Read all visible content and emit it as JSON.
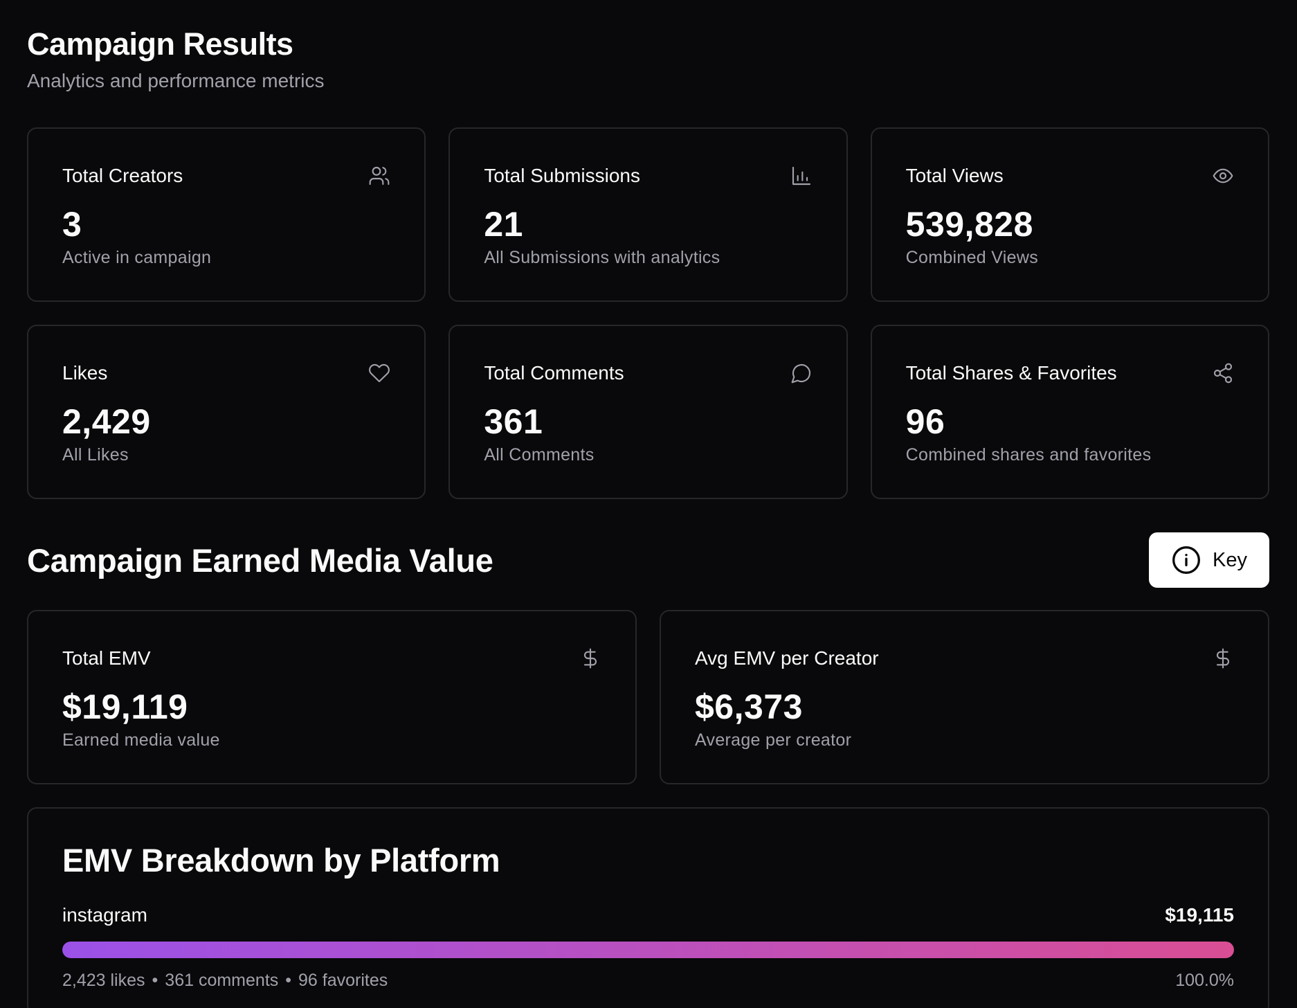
{
  "header": {
    "title": "Campaign Results",
    "subtitle": "Analytics and performance metrics"
  },
  "metrics": [
    {
      "label": "Total Creators",
      "value": "3",
      "sub": "Active in campaign",
      "icon": "users-icon"
    },
    {
      "label": "Total Submissions",
      "value": "21",
      "sub": "All Submissions with analytics",
      "icon": "bar-chart-icon"
    },
    {
      "label": "Total Views",
      "value": "539,828",
      "sub": "Combined Views",
      "icon": "eye-icon"
    },
    {
      "label": "Likes",
      "value": "2,429",
      "sub": "All Likes",
      "icon": "heart-icon"
    },
    {
      "label": "Total Comments",
      "value": "361",
      "sub": "All Comments",
      "icon": "comment-icon"
    },
    {
      "label": "Total Shares & Favorites",
      "value": "96",
      "sub": "Combined shares and favorites",
      "icon": "share-icon"
    }
  ],
  "emv": {
    "title": "Campaign Earned Media Value",
    "key_label": "Key",
    "cards": [
      {
        "label": "Total EMV",
        "value": "$19,119",
        "sub": "Earned media value",
        "icon": "dollar-icon"
      },
      {
        "label": "Avg EMV per Creator",
        "value": "$6,373",
        "sub": "Average per creator",
        "icon": "dollar-icon"
      }
    ]
  },
  "breakdown": {
    "title": "EMV Breakdown by Platform",
    "platforms": [
      {
        "name": "instagram",
        "value": "$19,115",
        "share_percent": 100.0,
        "share_label": "100.0%",
        "likes": "2,423 likes",
        "comments": "361 comments",
        "favorites": "96 favorites",
        "separator": "•"
      }
    ]
  },
  "colors": {
    "background": "#09090b",
    "border": "#27272a",
    "muted": "#a1a1aa",
    "gradient_start": "#9b51e8",
    "gradient_end": "#d94e94"
  }
}
